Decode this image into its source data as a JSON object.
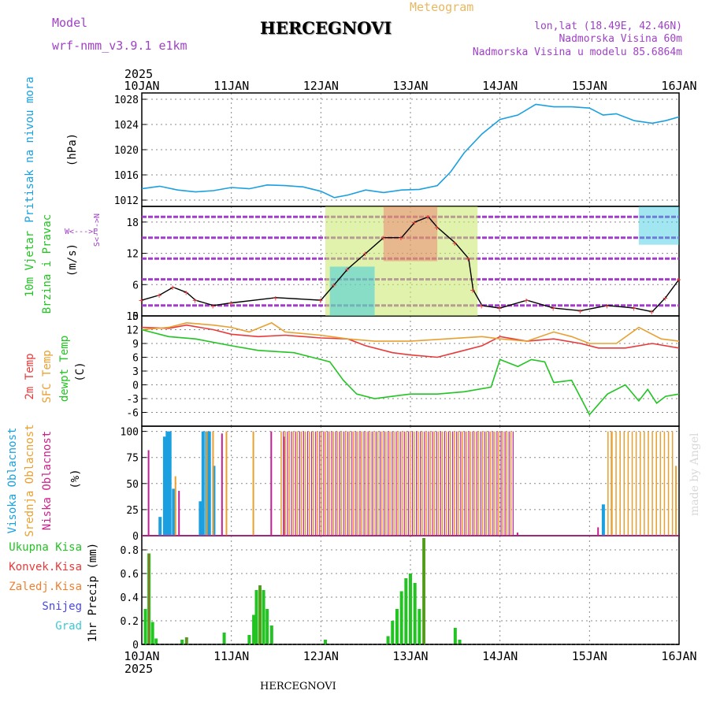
{
  "header": {
    "model_label": "Model",
    "model_name": "wrf-nmm_v3.9.1 e1km",
    "station": "HERCEGNOVI",
    "product": "Meteogram",
    "location_lines": [
      "lon,lat (18.49E, 42.46N)",
      "Nadmorska Visina 60m",
      "Nadmorska Visina u modelu 85.6864m"
    ],
    "year": "2025",
    "footer_station": "HERCEGNOVI",
    "watermark": "made by Angel"
  },
  "colors": {
    "pressure": "#1aa0e0",
    "temp2m": "#e83a3a",
    "sfc": "#e8a030",
    "dewpt": "#22c422",
    "purple": "#a040c8",
    "cyan": "#3cc8d8",
    "orange": "#f08030",
    "black": "#000000"
  },
  "panel_labels": {
    "pressure": {
      "name": "Pritisak na nivou mora",
      "unit": "(hPa)"
    },
    "wind": {
      "name1": "10m Vjetar",
      "name2": "Brzina i Pravac",
      "unit": "(m/s)",
      "compass_ns": "S<--->N",
      "compass_we": "W<--->E"
    },
    "temp": {
      "l1": "2m Temp",
      "l2": "SFC Temp",
      "l3": "dewpt Temp",
      "unit": "(C)"
    },
    "cloud": {
      "l1": "Visoka Oblacnost",
      "l2": "Srednja Oblacnost",
      "l3": "Niska Oblacnost",
      "unit": "(%)"
    },
    "precip": {
      "unit": "1hr Precip (mm)",
      "legend": [
        "Ukupna Kisa",
        "Konvek.Kisa",
        "Zaledj.Kisa",
        "Snijeg",
        "Grad"
      ]
    }
  },
  "chart_data": [
    {
      "type": "line",
      "title": "Pritisak na nivou mora",
      "ylabel": "(hPa)",
      "x": [
        "10JAN",
        "11JAN",
        "12JAN",
        "13JAN",
        "14JAN",
        "15JAN",
        "16JAN"
      ],
      "ylim": [
        1011,
        1029
      ],
      "yticks": [
        1012,
        1016,
        1020,
        1024,
        1028
      ],
      "series": [
        {
          "values": [
            [
              0,
              1013.8
            ],
            [
              0.2,
              1014.2
            ],
            [
              0.4,
              1013.6
            ],
            [
              0.6,
              1013.3
            ],
            [
              0.8,
              1013.5
            ],
            [
              1,
              1014.0
            ],
            [
              1.2,
              1013.8
            ],
            [
              1.4,
              1014.4
            ],
            [
              1.6,
              1014.3
            ],
            [
              1.8,
              1014.1
            ],
            [
              2,
              1013.4
            ],
            [
              2.15,
              1012.4
            ],
            [
              2.3,
              1012.8
            ],
            [
              2.5,
              1013.6
            ],
            [
              2.7,
              1013.2
            ],
            [
              2.9,
              1013.6
            ],
            [
              3.1,
              1013.7
            ],
            [
              3.3,
              1014.3
            ],
            [
              3.45,
              1016.5
            ],
            [
              3.6,
              1019.5
            ],
            [
              3.8,
              1022.5
            ],
            [
              4.0,
              1024.8
            ],
            [
              4.2,
              1025.5
            ],
            [
              4.4,
              1027.2
            ],
            [
              4.6,
              1026.8
            ],
            [
              4.8,
              1026.8
            ],
            [
              5.0,
              1026.6
            ],
            [
              5.15,
              1025.5
            ],
            [
              5.3,
              1025.7
            ],
            [
              5.5,
              1024.6
            ],
            [
              5.7,
              1024.2
            ],
            [
              5.85,
              1024.6
            ],
            [
              6,
              1025.2
            ]
          ]
        }
      ]
    },
    {
      "type": "line",
      "title": "10m Vjetar Brzina i Pravac",
      "ylabel": "(m/s)",
      "ylim": [
        0,
        21
      ],
      "yticks": [
        0,
        6,
        12,
        18
      ],
      "series": [
        {
          "values": [
            [
              0,
              3.0
            ],
            [
              0.2,
              4.0
            ],
            [
              0.35,
              5.5
            ],
            [
              0.5,
              4.5
            ],
            [
              0.6,
              3.0
            ],
            [
              0.8,
              2.0
            ],
            [
              1,
              2.5
            ],
            [
              1.5,
              3.5
            ],
            [
              2,
              3.0
            ],
            [
              2.15,
              6
            ],
            [
              2.3,
              9
            ],
            [
              2.5,
              12
            ],
            [
              2.7,
              15
            ],
            [
              2.9,
              15
            ],
            [
              3.05,
              18
            ],
            [
              3.2,
              19
            ],
            [
              3.3,
              17
            ],
            [
              3.5,
              14
            ],
            [
              3.65,
              11
            ],
            [
              3.7,
              5
            ],
            [
              3.8,
              2
            ],
            [
              4,
              1.5
            ],
            [
              4.3,
              3
            ],
            [
              4.6,
              1.5
            ],
            [
              4.9,
              1.0
            ],
            [
              5.2,
              2.0
            ],
            [
              5.5,
              1.5
            ],
            [
              5.7,
              0.8
            ],
            [
              5.85,
              3.5
            ],
            [
              6,
              7.0
            ]
          ]
        }
      ]
    },
    {
      "type": "line",
      "title": "2m Temp / SFC Temp / dewpt Temp",
      "ylabel": "(C)",
      "ylim": [
        -9,
        15
      ],
      "yticks": [
        -6,
        -3,
        0,
        3,
        6,
        9,
        12,
        15
      ],
      "series": [
        {
          "name": "2m Temp",
          "values": [
            [
              0,
              12.5
            ],
            [
              0.3,
              12.3
            ],
            [
              0.5,
              13.0
            ],
            [
              0.8,
              12.0
            ],
            [
              1,
              11.0
            ],
            [
              1.3,
              10.5
            ],
            [
              1.6,
              10.8
            ],
            [
              2,
              10.2
            ],
            [
              2.3,
              10.0
            ],
            [
              2.5,
              8.5
            ],
            [
              2.8,
              7.0
            ],
            [
              3.0,
              6.5
            ],
            [
              3.3,
              6.0
            ],
            [
              3.5,
              7.0
            ],
            [
              3.8,
              8.5
            ],
            [
              4.0,
              10.5
            ],
            [
              4.3,
              9.5
            ],
            [
              4.6,
              10.0
            ],
            [
              4.9,
              9.0
            ],
            [
              5.1,
              8.0
            ],
            [
              5.4,
              8.0
            ],
            [
              5.7,
              9.0
            ],
            [
              6,
              8.0
            ]
          ]
        },
        {
          "name": "SFC Temp",
          "values": [
            [
              0,
              12.0
            ],
            [
              0.3,
              12.5
            ],
            [
              0.5,
              13.5
            ],
            [
              0.8,
              13.0
            ],
            [
              1,
              12.5
            ],
            [
              1.2,
              11.5
            ],
            [
              1.45,
              13.5
            ],
            [
              1.6,
              11.5
            ],
            [
              2,
              10.8
            ],
            [
              2.3,
              10.0
            ],
            [
              2.6,
              9.5
            ],
            [
              3.0,
              9.5
            ],
            [
              3.4,
              10.0
            ],
            [
              3.8,
              10.5
            ],
            [
              4.0,
              10.0
            ],
            [
              4.3,
              9.5
            ],
            [
              4.6,
              11.5
            ],
            [
              4.8,
              10.5
            ],
            [
              5.0,
              9.0
            ],
            [
              5.3,
              9.0
            ],
            [
              5.55,
              12.5
            ],
            [
              5.8,
              10.0
            ],
            [
              6,
              9.5
            ]
          ]
        },
        {
          "name": "dewpt Temp",
          "values": [
            [
              0,
              12.0
            ],
            [
              0.3,
              10.5
            ],
            [
              0.6,
              10.0
            ],
            [
              1,
              8.5
            ],
            [
              1.3,
              7.5
            ],
            [
              1.7,
              7.0
            ],
            [
              2,
              5.5
            ],
            [
              2.1,
              5.0
            ],
            [
              2.25,
              1.0
            ],
            [
              2.4,
              -2.0
            ],
            [
              2.6,
              -3.0
            ],
            [
              2.8,
              -2.5
            ],
            [
              3.0,
              -2.0
            ],
            [
              3.3,
              -2.0
            ],
            [
              3.6,
              -1.5
            ],
            [
              3.9,
              -0.5
            ],
            [
              4.0,
              5.5
            ],
            [
              4.2,
              4.0
            ],
            [
              4.35,
              5.5
            ],
            [
              4.5,
              5.0
            ],
            [
              4.6,
              0.5
            ],
            [
              4.8,
              1.0
            ],
            [
              5.0,
              -6.5
            ],
            [
              5.2,
              -2.0
            ],
            [
              5.4,
              0.0
            ],
            [
              5.55,
              -3.5
            ],
            [
              5.65,
              -1.0
            ],
            [
              5.75,
              -4.0
            ],
            [
              5.85,
              -2.5
            ],
            [
              6,
              -2.0
            ]
          ]
        }
      ]
    },
    {
      "type": "bar",
      "title": "Visoka / Srednja / Niska Oblacnost",
      "ylabel": "(%)",
      "ylim": [
        0,
        105
      ],
      "yticks": [
        0,
        25,
        50,
        75,
        100
      ],
      "series": [
        {
          "name": "Visoka Oblacnost",
          "values": [
            [
              0.2,
              18
            ],
            [
              0.25,
              95
            ],
            [
              0.28,
              100
            ],
            [
              0.31,
              100
            ],
            [
              0.35,
              45
            ],
            [
              0.65,
              33
            ],
            [
              0.68,
              100
            ],
            [
              0.72,
              100
            ],
            [
              0.75,
              100
            ],
            [
              0.8,
              67
            ],
            [
              5.15,
              30
            ]
          ]
        },
        {
          "name": "Srednja Oblacnost",
          "values": [
            [
              0.38,
              57
            ],
            [
              0.73,
              100
            ],
            [
              0.8,
              100
            ],
            [
              0.95,
              100
            ],
            [
              1.25,
              100
            ],
            [
              5.25,
              100
            ],
            [
              5.97,
              67
            ]
          ]
        },
        {
          "name": "Niska Oblacnost",
          "values": [
            [
              0.08,
              82
            ],
            [
              0.42,
              43
            ],
            [
              0.9,
              98
            ],
            [
              1.45,
              100
            ],
            [
              1.6,
              95
            ],
            [
              4.2,
              3
            ],
            [
              5.1,
              8
            ]
          ]
        }
      ]
    },
    {
      "type": "bar",
      "title": "1hr Precip",
      "ylabel": "1hr Precip (mm)",
      "ylim": [
        0,
        0.92
      ],
      "yticks": [
        0,
        0.2,
        0.4,
        0.6,
        0.8
      ],
      "series": [
        {
          "name": "Ukupna Kisa",
          "values": [
            [
              0.04,
              0.3
            ],
            [
              0.08,
              0.77
            ],
            [
              0.12,
              0.19
            ],
            [
              0.16,
              0.05
            ],
            [
              0.45,
              0.04
            ],
            [
              0.5,
              0.06
            ],
            [
              0.92,
              0.1
            ],
            [
              1.2,
              0.08
            ],
            [
              1.25,
              0.25
            ],
            [
              1.28,
              0.46
            ],
            [
              1.32,
              0.5
            ],
            [
              1.36,
              0.46
            ],
            [
              1.4,
              0.3
            ],
            [
              1.45,
              0.16
            ],
            [
              2.05,
              0.04
            ],
            [
              2.75,
              0.07
            ],
            [
              2.8,
              0.2
            ],
            [
              2.85,
              0.3
            ],
            [
              2.9,
              0.45
            ],
            [
              2.95,
              0.56
            ],
            [
              3.0,
              0.6
            ],
            [
              3.05,
              0.52
            ],
            [
              3.1,
              0.3
            ],
            [
              3.15,
              0.9
            ],
            [
              3.5,
              0.14
            ],
            [
              3.55,
              0.04
            ]
          ]
        },
        {
          "name": "Konvek.Kisa",
          "values": [
            [
              0.08,
              0.77
            ],
            [
              0.5,
              0.06
            ],
            [
              1.32,
              0.5
            ],
            [
              3.15,
              0.9
            ]
          ]
        }
      ]
    }
  ]
}
